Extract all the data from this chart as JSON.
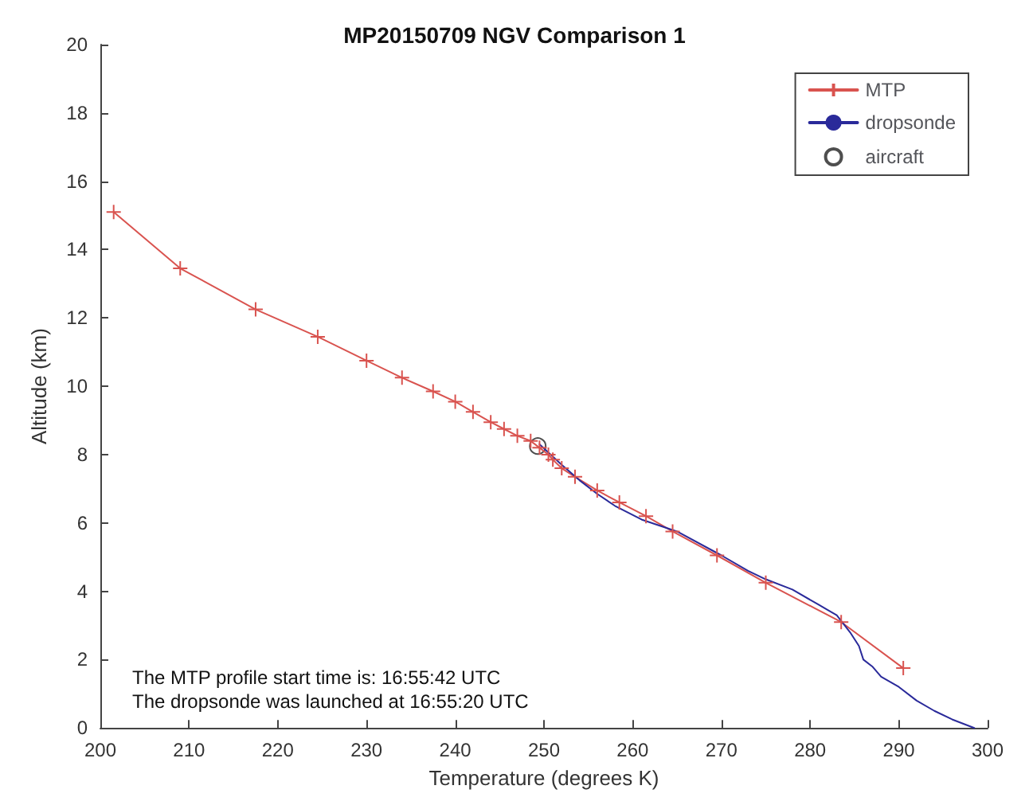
{
  "chart_data": {
    "type": "line",
    "title": "MP20150709 NGV Comparison 1",
    "xlabel": "Temperature (degrees K)",
    "ylabel": "Altitude (km)",
    "xlim": [
      200,
      300
    ],
    "xticks": [
      200,
      210,
      220,
      230,
      240,
      250,
      260,
      270,
      280,
      290,
      300
    ],
    "ylim": [
      0,
      20
    ],
    "yticks": [
      0,
      2,
      4,
      6,
      8,
      10,
      12,
      14,
      16,
      18,
      20
    ],
    "grid": false,
    "legend": "top right",
    "annotations": [
      "The MTP profile start time is: 16:55:42 UTC",
      "The dropsonde was launched at 16:55:20 UTC"
    ],
    "series": [
      {
        "name": "MTP",
        "color": "#d9534f",
        "marker": "cross",
        "line_style": "solid",
        "x": [
          201.5,
          209,
          217.5,
          224.5,
          230,
          234,
          237.5,
          240,
          242,
          244,
          245.5,
          247,
          248.5,
          249.5,
          250.5,
          251,
          252,
          253.5,
          256,
          258.5,
          261.5,
          264.5,
          269.5,
          275,
          283.5,
          290.5
        ],
        "values": [
          15.1,
          13.45,
          12.25,
          11.45,
          10.75,
          10.25,
          9.85,
          9.55,
          9.25,
          8.95,
          8.75,
          8.55,
          8.4,
          8.2,
          8.0,
          7.85,
          7.6,
          7.35,
          6.95,
          6.6,
          6.2,
          5.75,
          5.05,
          4.25,
          3.1,
          1.75
        ]
      },
      {
        "name": "dropsonde",
        "color": "#2a2a9a",
        "marker": "none",
        "line_style": "solid",
        "x": [
          249.5,
          252,
          254,
          256,
          258,
          261,
          265,
          270,
          273,
          275,
          278,
          281,
          283,
          284.5,
          285.5,
          286,
          287,
          288,
          290,
          292,
          294,
          296,
          298.5
        ],
        "values": [
          8.3,
          7.7,
          7.25,
          6.85,
          6.5,
          6.1,
          5.75,
          5.05,
          4.6,
          4.35,
          4.05,
          3.6,
          3.3,
          2.8,
          2.4,
          2.0,
          1.8,
          1.5,
          1.2,
          0.8,
          0.5,
          0.25,
          0
        ]
      },
      {
        "name": "aircraft",
        "type": "scatter",
        "color": "#222222",
        "marker": "circle",
        "x": [
          249.3
        ],
        "values": [
          8.25
        ]
      }
    ]
  }
}
